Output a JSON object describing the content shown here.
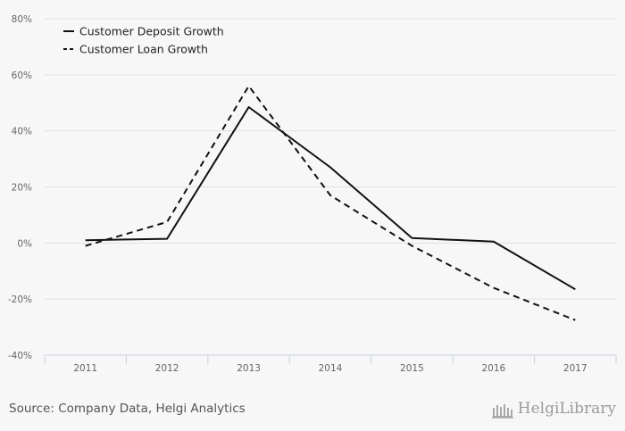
{
  "chart_data": {
    "type": "line",
    "title": "",
    "xlabel": "",
    "ylabel": "",
    "categories": [
      "2011",
      "2012",
      "2013",
      "2014",
      "2015",
      "2016",
      "2017"
    ],
    "ylim": [
      -40,
      80
    ],
    "yticks": [
      -40,
      -20,
      0,
      20,
      40,
      60,
      80
    ],
    "ytick_labels": [
      "-40%",
      "-20%",
      "0%",
      "20%",
      "40%",
      "60%",
      "80%"
    ],
    "series": [
      {
        "name": "Customer Deposit Growth",
        "style": "solid",
        "values": [
          1.0,
          1.5,
          48.5,
          27.0,
          1.8,
          0.5,
          -16.5
        ]
      },
      {
        "name": "Customer Loan Growth",
        "style": "dashed",
        "values": [
          -1.0,
          7.5,
          56.0,
          17.0,
          -1.0,
          -16.0,
          -27.5
        ]
      }
    ],
    "legend_position": "top-left",
    "grid": true
  },
  "colors": {
    "background": "#f7f7f7",
    "line": "#111111",
    "grid": "#e2e2e2",
    "axis": "#c8d2e0",
    "tick_text": "#666666"
  },
  "footer": {
    "source": "Source: Company Data, Helgi Analytics",
    "brand": "HelgiLibrary",
    "brand_icon": "library-building-icon"
  }
}
